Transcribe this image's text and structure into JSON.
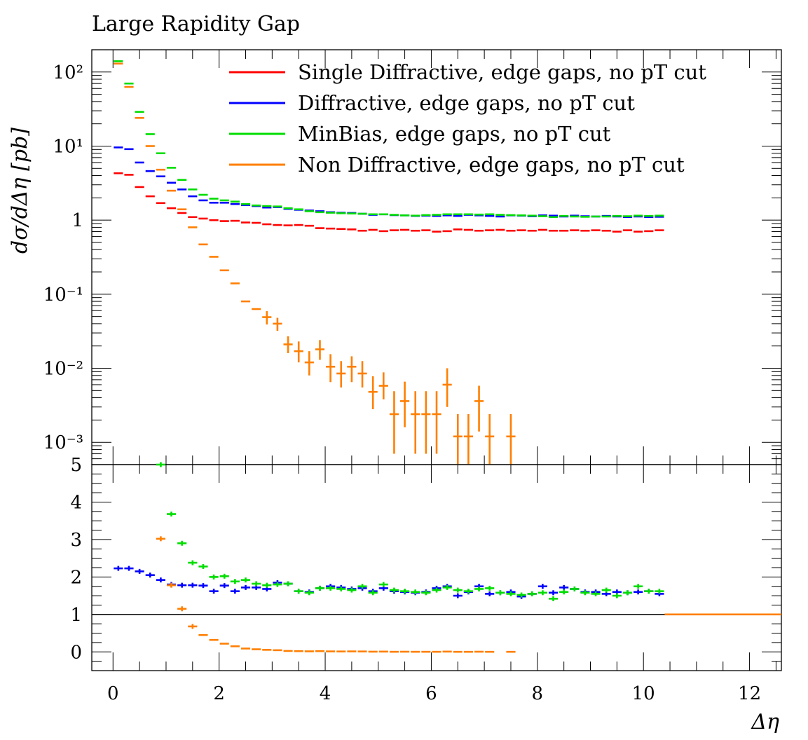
{
  "title": "Large Rapidity Gap",
  "colors": {
    "single_diffractive": "#ff0000",
    "diffractive": "#0000ff",
    "minbias": "#00dd00",
    "non_diffractive": "#ff7f00",
    "frame": "#000000"
  },
  "chart_data": [
    {
      "type": "line",
      "panel": "main",
      "xlabel": "",
      "ylabel": "dσ/dΔη [pb]",
      "yscale": "log",
      "ylim": [
        0.0005,
        200
      ],
      "xlim": [
        -0.4,
        12.6
      ],
      "yticks": [
        {
          "value": 100,
          "label": "10²"
        },
        {
          "value": 10,
          "label": "10¹"
        },
        {
          "value": 1,
          "label": "1"
        },
        {
          "value": 0.1,
          "label": "10⁻¹"
        },
        {
          "value": 0.01,
          "label": "10⁻²"
        },
        {
          "value": 0.001,
          "label": "10⁻³"
        }
      ],
      "legend_position": "top-right",
      "series": [
        {
          "name": "Single Diffractive, edge gaps, no pT cut",
          "color_key": "single_diffractive",
          "bin_width": 0.2,
          "x": [
            0.1,
            0.3,
            0.5,
            0.7,
            0.9,
            1.1,
            1.3,
            1.5,
            1.7,
            1.9,
            2.1,
            2.3,
            2.5,
            2.7,
            2.9,
            3.1,
            3.3,
            3.5,
            3.7,
            3.9,
            4.1,
            4.3,
            4.5,
            4.7,
            4.9,
            5.1,
            5.3,
            5.5,
            5.7,
            5.9,
            6.1,
            6.3,
            6.5,
            6.7,
            6.9,
            7.1,
            7.3,
            7.5,
            7.7,
            7.9,
            8.1,
            8.3,
            8.5,
            8.7,
            8.9,
            9.1,
            9.3,
            9.5,
            9.7,
            9.9,
            10.1,
            10.3
          ],
          "y": [
            4.3,
            4.1,
            2.8,
            2.1,
            1.7,
            1.45,
            1.25,
            1.1,
            1.05,
            1.0,
            0.97,
            0.98,
            0.93,
            0.92,
            0.88,
            0.86,
            0.85,
            0.86,
            0.84,
            0.78,
            0.77,
            0.76,
            0.75,
            0.72,
            0.74,
            0.71,
            0.73,
            0.74,
            0.72,
            0.73,
            0.7,
            0.71,
            0.75,
            0.74,
            0.72,
            0.73,
            0.74,
            0.72,
            0.73,
            0.72,
            0.74,
            0.72,
            0.72,
            0.73,
            0.72,
            0.73,
            0.72,
            0.7,
            0.73,
            0.7,
            0.71,
            0.73
          ]
        },
        {
          "name": "Diffractive, edge gaps, no pT cut",
          "color_key": "diffractive",
          "bin_width": 0.2,
          "x": [
            0.1,
            0.3,
            0.5,
            0.7,
            0.9,
            1.1,
            1.3,
            1.5,
            1.7,
            1.9,
            2.1,
            2.3,
            2.5,
            2.7,
            2.9,
            3.1,
            3.3,
            3.5,
            3.7,
            3.9,
            4.1,
            4.3,
            4.5,
            4.7,
            4.9,
            5.1,
            5.3,
            5.5,
            5.7,
            5.9,
            6.1,
            6.3,
            6.5,
            6.7,
            6.9,
            7.1,
            7.3,
            7.5,
            7.7,
            7.9,
            8.1,
            8.3,
            8.5,
            8.7,
            8.9,
            9.1,
            9.3,
            9.5,
            9.7,
            9.9,
            10.1,
            10.3
          ],
          "y": [
            9.6,
            9.1,
            6.0,
            4.6,
            3.9,
            3.2,
            2.6,
            2.1,
            1.85,
            1.72,
            1.72,
            1.65,
            1.6,
            1.55,
            1.48,
            1.5,
            1.42,
            1.38,
            1.35,
            1.32,
            1.28,
            1.26,
            1.25,
            1.22,
            1.18,
            1.2,
            1.17,
            1.16,
            1.14,
            1.15,
            1.14,
            1.16,
            1.14,
            1.18,
            1.16,
            1.14,
            1.12,
            1.16,
            1.15,
            1.13,
            1.16,
            1.15,
            1.12,
            1.15,
            1.13,
            1.12,
            1.14,
            1.12,
            1.1,
            1.12,
            1.1,
            1.11
          ]
        },
        {
          "name": "MinBias, edge gaps, no pT cut",
          "color_key": "minbias",
          "bin_width": 0.2,
          "x": [
            0.1,
            0.3,
            0.5,
            0.7,
            0.9,
            1.1,
            1.3,
            1.5,
            1.7,
            1.9,
            2.1,
            2.3,
            2.5,
            2.7,
            2.9,
            3.1,
            3.3,
            3.5,
            3.7,
            3.9,
            4.1,
            4.3,
            4.5,
            4.7,
            4.9,
            5.1,
            5.3,
            5.5,
            5.7,
            5.9,
            6.1,
            6.3,
            6.5,
            6.7,
            6.9,
            7.1,
            7.3,
            7.5,
            7.7,
            7.9,
            8.1,
            8.3,
            8.5,
            8.7,
            8.9,
            9.1,
            9.3,
            9.5,
            9.7,
            9.9,
            10.1,
            10.3
          ],
          "y": [
            140,
            70,
            29,
            14.5,
            8.0,
            5.1,
            3.5,
            2.6,
            2.2,
            1.95,
            1.85,
            1.78,
            1.65,
            1.58,
            1.55,
            1.53,
            1.45,
            1.4,
            1.32,
            1.28,
            1.26,
            1.24,
            1.23,
            1.22,
            1.2,
            1.2,
            1.18,
            1.16,
            1.15,
            1.17,
            1.18,
            1.2,
            1.2,
            1.2,
            1.19,
            1.2,
            1.18,
            1.17,
            1.16,
            1.15,
            1.13,
            1.1,
            1.14,
            1.12,
            1.11,
            1.12,
            1.12,
            1.14,
            1.13,
            1.15,
            1.14,
            1.15
          ]
        },
        {
          "name": "Non Diffractive, edge gaps, no pT cut",
          "color_key": "non_diffractive",
          "bin_width": 0.2,
          "x": [
            0.1,
            0.3,
            0.5,
            0.7,
            0.9,
            1.1,
            1.3,
            1.5,
            1.7,
            1.9,
            2.1,
            2.3,
            2.5,
            2.7,
            2.9,
            3.1,
            3.3,
            3.5,
            3.7,
            3.9,
            4.1,
            4.3,
            4.5,
            4.7,
            4.9,
            5.1,
            5.3,
            5.5,
            5.7,
            5.9,
            6.1,
            6.3,
            6.5,
            6.7,
            6.9,
            7.1,
            7.5
          ],
          "y": [
            130,
            63,
            24,
            10,
            4.8,
            2.5,
            1.4,
            0.8,
            0.47,
            0.32,
            0.21,
            0.14,
            0.08,
            0.063,
            0.049,
            0.04,
            0.021,
            0.017,
            0.012,
            0.018,
            0.0105,
            0.0085,
            0.0105,
            0.0085,
            0.0048,
            0.0058,
            0.0024,
            0.0036,
            0.0024,
            0.0024,
            0.0024,
            0.006,
            0.0012,
            0.0012,
            0.0036,
            0.0012,
            0.0012
          ],
          "yerr_low": [
            0,
            0,
            0,
            0,
            0,
            0,
            0,
            0,
            0,
            0,
            0,
            0,
            0,
            0,
            0.01,
            0.008,
            0.005,
            0.005,
            0.004,
            0.005,
            0.004,
            0.003,
            0.004,
            0.003,
            0.002,
            0.002,
            0.0017,
            0.002,
            0.0017,
            0.0017,
            0.0017,
            0.003,
            0.0012,
            0.0012,
            0.0022,
            0.0012,
            0.0012
          ],
          "yerr_high": [
            0,
            0,
            0,
            0,
            0,
            0,
            0,
            0,
            0,
            0,
            0,
            0,
            0,
            0,
            0.01,
            0.008,
            0.006,
            0.006,
            0.005,
            0.006,
            0.005,
            0.004,
            0.004,
            0.004,
            0.003,
            0.003,
            0.0025,
            0.003,
            0.0025,
            0.0025,
            0.0025,
            0.004,
            0.0012,
            0.0012,
            0.0022,
            0.0012,
            0.0012
          ]
        }
      ]
    },
    {
      "type": "scatter",
      "panel": "ratio",
      "xlabel": "Δη",
      "ylabel": "",
      "ylim": [
        -0.5,
        5
      ],
      "xlim": [
        -0.4,
        12.6
      ],
      "yticks": [
        {
          "value": 5,
          "label": "5"
        },
        {
          "value": 4,
          "label": "4"
        },
        {
          "value": 3,
          "label": "3"
        },
        {
          "value": 2,
          "label": "2"
        },
        {
          "value": 1,
          "label": "1"
        },
        {
          "value": 0,
          "label": "0"
        }
      ],
      "xticks": [
        {
          "value": 0,
          "label": "0"
        },
        {
          "value": 2,
          "label": "2"
        },
        {
          "value": 4,
          "label": "4"
        },
        {
          "value": 6,
          "label": "6"
        },
        {
          "value": 8,
          "label": "8"
        },
        {
          "value": 10,
          "label": "10"
        },
        {
          "value": 12,
          "label": "12"
        }
      ],
      "reference_line": 1,
      "series": [
        {
          "color_key": "single_diffractive",
          "bin_width": 0.2,
          "x_start": -0.4,
          "x_end": 12.6,
          "y_const": 1
        },
        {
          "color_key": "diffractive",
          "bin_width": 0.2,
          "x": [
            0.1,
            0.3,
            0.5,
            0.7,
            0.9,
            1.1,
            1.3,
            1.5,
            1.7,
            1.9,
            2.1,
            2.3,
            2.5,
            2.7,
            2.9,
            3.1,
            3.3,
            3.5,
            3.7,
            3.9,
            4.1,
            4.3,
            4.5,
            4.7,
            4.9,
            5.1,
            5.3,
            5.5,
            5.7,
            5.9,
            6.1,
            6.3,
            6.5,
            6.7,
            6.9,
            7.1,
            7.3,
            7.5,
            7.7,
            7.9,
            8.1,
            8.3,
            8.5,
            8.7,
            8.9,
            9.1,
            9.3,
            9.5,
            9.7,
            9.9,
            10.1,
            10.3
          ],
          "y": [
            2.23,
            2.23,
            2.15,
            2.05,
            1.92,
            1.8,
            1.78,
            1.78,
            1.77,
            1.62,
            1.77,
            1.62,
            1.72,
            1.72,
            1.68,
            1.85,
            1.82,
            1.62,
            1.6,
            1.7,
            1.75,
            1.72,
            1.68,
            1.7,
            1.62,
            1.7,
            1.62,
            1.6,
            1.58,
            1.6,
            1.7,
            1.75,
            1.5,
            1.6,
            1.75,
            1.55,
            1.58,
            1.6,
            1.48,
            1.55,
            1.75,
            1.58,
            1.72,
            1.68,
            1.6,
            1.6,
            1.55,
            1.6,
            1.58,
            1.6,
            1.62,
            1.55
          ]
        },
        {
          "color_key": "minbias",
          "bin_width": 0.2,
          "x": [
            0.9,
            1.1,
            1.3,
            1.5,
            1.7,
            1.9,
            2.1,
            2.3,
            2.5,
            2.7,
            2.9,
            3.1,
            3.3,
            3.5,
            3.7,
            3.9,
            4.1,
            4.3,
            4.5,
            4.7,
            4.9,
            5.1,
            5.3,
            5.5,
            5.7,
            5.9,
            6.1,
            6.3,
            6.5,
            6.7,
            6.9,
            7.1,
            7.3,
            7.5,
            7.7,
            7.9,
            8.1,
            8.3,
            8.5,
            8.7,
            8.9,
            9.1,
            9.3,
            9.5,
            9.7,
            9.9,
            10.1,
            10.3
          ],
          "y": [
            5.0,
            3.68,
            2.9,
            2.38,
            2.28,
            2.0,
            2.02,
            1.88,
            1.92,
            1.82,
            1.78,
            1.8,
            1.82,
            1.62,
            1.58,
            1.7,
            1.7,
            1.68,
            1.65,
            1.75,
            1.58,
            1.8,
            1.65,
            1.62,
            1.6,
            1.58,
            1.65,
            1.72,
            1.65,
            1.62,
            1.68,
            1.7,
            1.58,
            1.55,
            1.52,
            1.55,
            1.58,
            1.42,
            1.6,
            1.68,
            1.58,
            1.55,
            1.65,
            1.5,
            1.58,
            1.75,
            1.62,
            1.62
          ]
        },
        {
          "color_key": "non_diffractive",
          "bin_width": 0.2,
          "x": [
            0.9,
            1.1,
            1.3,
            1.5,
            1.7,
            1.9,
            2.1,
            2.3,
            2.5,
            2.7,
            2.9,
            3.1,
            3.3,
            3.5,
            3.7,
            3.9,
            4.1,
            4.3,
            4.5,
            4.7,
            4.9,
            5.1,
            5.3,
            5.5,
            5.7,
            5.9,
            6.1,
            6.3,
            6.5,
            6.7,
            6.9,
            7.1,
            7.5
          ],
          "y": [
            3.02,
            1.78,
            1.15,
            0.68,
            0.45,
            0.32,
            0.22,
            0.15,
            0.09,
            0.07,
            0.055,
            0.045,
            0.025,
            0.02,
            0.015,
            0.02,
            0.013,
            0.011,
            0.013,
            0.011,
            0.006,
            0.008,
            0.003,
            0.005,
            0.003,
            0.003,
            0.003,
            0.008,
            0.002,
            0.002,
            0.005,
            0.002,
            0.002
          ]
        }
      ]
    }
  ]
}
